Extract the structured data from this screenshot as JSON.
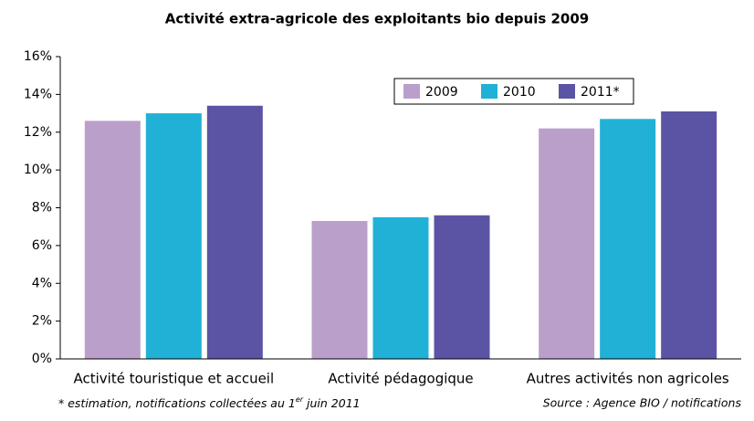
{
  "chart_data": {
    "type": "bar",
    "title": "Activité extra-agricole des exploitants bio depuis 2009",
    "categories": [
      "Activité touristique et accueil",
      "Activité pédagogique",
      "Autres activités non agricoles"
    ],
    "series": [
      {
        "name": "2009",
        "color": "#bb9fcb",
        "values": [
          12.6,
          7.3,
          12.2
        ]
      },
      {
        "name": "2010",
        "color": "#21b1d6",
        "values": [
          13.0,
          7.5,
          12.7
        ]
      },
      {
        "name": "2011*",
        "color": "#5b54a4",
        "values": [
          13.4,
          7.6,
          13.1
        ]
      }
    ],
    "ylim": [
      0,
      16
    ],
    "yticks": [
      {
        "value": 0,
        "label": "0%"
      },
      {
        "value": 2,
        "label": "2%"
      },
      {
        "value": 4,
        "label": "4%"
      },
      {
        "value": 6,
        "label": "6%"
      },
      {
        "value": 8,
        "label": "8%"
      },
      {
        "value": 10,
        "label": "10%"
      },
      {
        "value": 12,
        "label": "12%"
      },
      {
        "value": 14,
        "label": "14%"
      },
      {
        "value": 16,
        "label": "16%"
      }
    ],
    "grid": false,
    "footnote": [
      "* estimation, notifications collectées au 1",
      "er",
      " juin 2011"
    ],
    "source": "Source : Agence BIO / notifications"
  }
}
